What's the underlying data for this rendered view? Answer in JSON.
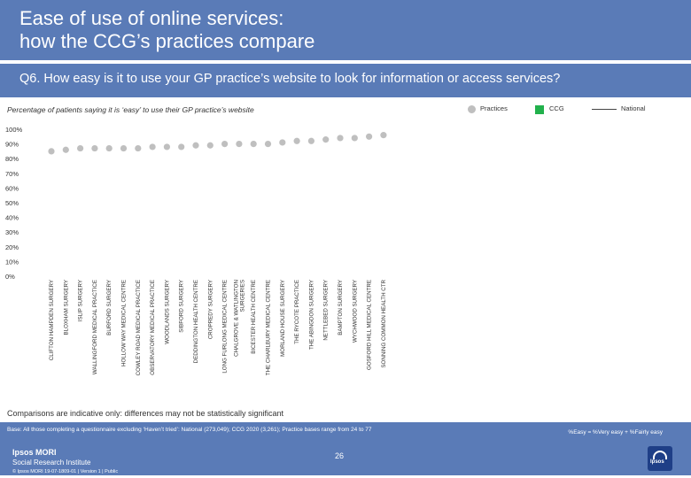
{
  "header": {
    "title_line1": "Ease of use of online services:",
    "title_line2": "how the CCG’s practices compare"
  },
  "question": "Q6. How easy is it to use your GP practice’s website to look for information or access services?",
  "subtitle": "Percentage of patients saying it is ‘easy’ to use their GP practice’s website",
  "legend": {
    "practices": "Practices",
    "ccg": "CCG",
    "national": "National"
  },
  "colors": {
    "header_bg": "#5a7bb7",
    "practice_dot": "#bfbfbf",
    "ccg": "#22b14c",
    "national": "#444444"
  },
  "chart_data": {
    "type": "scatter",
    "title": "Percentage of patients saying it is ‘easy’ to use their GP practice’s website",
    "xlabel": "",
    "ylabel": "",
    "ylim": [
      0,
      100
    ],
    "y_ticks": [
      "0%",
      "10%",
      "20%",
      "30%",
      "40%",
      "50%",
      "60%",
      "70%",
      "80%",
      "90%",
      "100%"
    ],
    "grid": false,
    "legend_position": "top-right",
    "categories": [
      "CLIFTON HAMPDEN SURGERY",
      "BLOXHAM SURGERY",
      "ISLIP SURGERY",
      "WALLINGFORD MEDICAL PRACTICE",
      "BURFORD SURGERY",
      "HOLLOW WAY MEDICAL CENTRE",
      "COWLEY ROAD MEDICAL PRACTICE",
      "OBSERVATORY MEDICAL PRACTICE",
      "WOODLANDS SURGERY",
      "SIBFORD SURGERY",
      "DEDDINGTON HEALTH CENTRE",
      "CROPREDY SURGERY",
      "LONG FURLONG MEDICAL CENTRE",
      "CHALGROVE & WATLINGTON SURGERIES",
      "BICESTER HEALTH CENTRE",
      "THE CHARLBURY MEDICAL CENTRE",
      "MORLAND HOUSE SURGERY",
      "THE RYCOTE PRACTICE",
      "THE ABINGDON SURGERY",
      "NETTLEBED SURGERY",
      "BAMPTON SURGERY",
      "WYCHWOOD SURGERY",
      "GOSFORD HILL MEDICAL CENTRE",
      "SONNING COMMON HEALTH CTR"
    ],
    "series": [
      {
        "name": "Practices",
        "values": [
          85,
          86,
          87,
          87,
          87,
          87,
          87,
          88,
          88,
          88,
          89,
          89,
          90,
          90,
          90,
          90,
          91,
          92,
          92,
          93,
          94,
          94,
          95,
          96
        ]
      }
    ]
  },
  "note": "Comparisons are indicative only: differences may not be statistically significant",
  "footer": {
    "base": "Base: All those completing a questionnaire excluding ‘Haven’t tried’: National (273,049); CCG 2020 (3,261); Practice bases range from 24 to 77",
    "easy_definition": "%Easy = %Very easy + %Fairly easy",
    "logo_line1": "Ipsos MORI",
    "logo_line2": "Social Research Institute",
    "credits": "© Ipsos MORI      19-07-1809-01 | Version 1 | Public",
    "page_number": "26",
    "badge_text": "Ipsos"
  }
}
